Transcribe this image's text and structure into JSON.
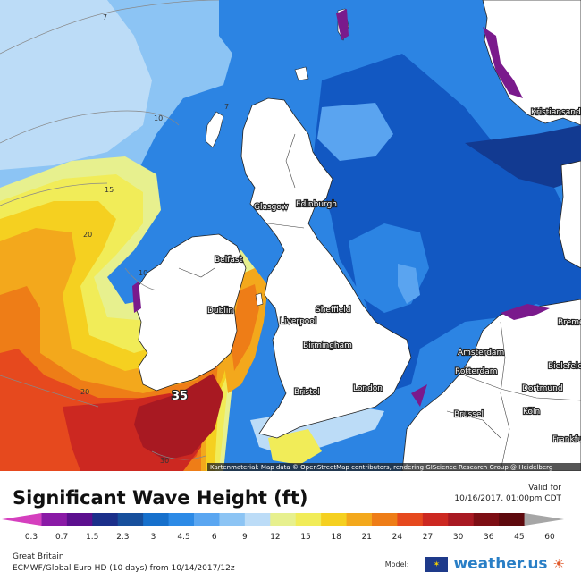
{
  "map": {
    "cities": [
      "Kristiansand",
      "Glasgow",
      "Edinburgh",
      "Belfast",
      "Dublin",
      "Liverpool",
      "Sheffield",
      "Birmingham",
      "Bristol",
      "London",
      "Amsterdam",
      "Rotterdam",
      "Brussel",
      "Dortmund",
      "Köln",
      "Bielefeld",
      "Bremen",
      "Frankfurt"
    ],
    "isolines": [
      "7",
      "7",
      "10",
      "15",
      "20",
      "10",
      "20",
      "30"
    ],
    "highlight_value": "35",
    "attribution": "Kartenmaterial: Map data © OpenStreetMap contributors, rendering GIScience Research Group @ Heidelberg University",
    "colors": {
      "sea_1_5": "#123a91",
      "sea_2_3": "#1258c2",
      "sea_3": "#2c84e3",
      "sea_4_5": "#5aa4f0",
      "sea_6": "#8cc4f4",
      "sea_9": "#bcdcf7",
      "sea_12": "#e7f08e",
      "sea_15": "#f1ec58",
      "sea_18": "#f5d020",
      "sea_21": "#f3a81c",
      "sea_24": "#ee7d17",
      "sea_27": "#e6491e",
      "sea_30": "#cc2821",
      "sea_36": "#a81922",
      "land": "#ffffff",
      "purple": "#7a1a8c"
    }
  },
  "footer": {
    "title": "Significant Wave Height (ft)",
    "valid_label": "Valid for",
    "valid_time": "10/16/2017, 01:00pm CDT",
    "region": "Great Britain",
    "model_run": "ECMWF/Global Euro HD (10 days) from 10/14/2017/12z",
    "model_label": "Model:",
    "brand": "weather.us"
  },
  "legend": {
    "ticks": [
      "0.3",
      "0.7",
      "1.5",
      "2.3",
      "3",
      "4.5",
      "6",
      "9",
      "12",
      "15",
      "18",
      "21",
      "24",
      "27",
      "30",
      "36",
      "45",
      "60"
    ],
    "colors": [
      "#d53fbe",
      "#8a1aa6",
      "#5c0f8e",
      "#1b2f8a",
      "#174f9c",
      "#1670cc",
      "#2c8ae6",
      "#5aa6f1",
      "#8cc4f4",
      "#bcdcf7",
      "#e7f08e",
      "#f1ec58",
      "#f5d020",
      "#f3a81c",
      "#ee7d17",
      "#e6491e",
      "#cc2821",
      "#a81922",
      "#7d0e14",
      "#5e0a0e",
      "#a6a6a6"
    ]
  }
}
